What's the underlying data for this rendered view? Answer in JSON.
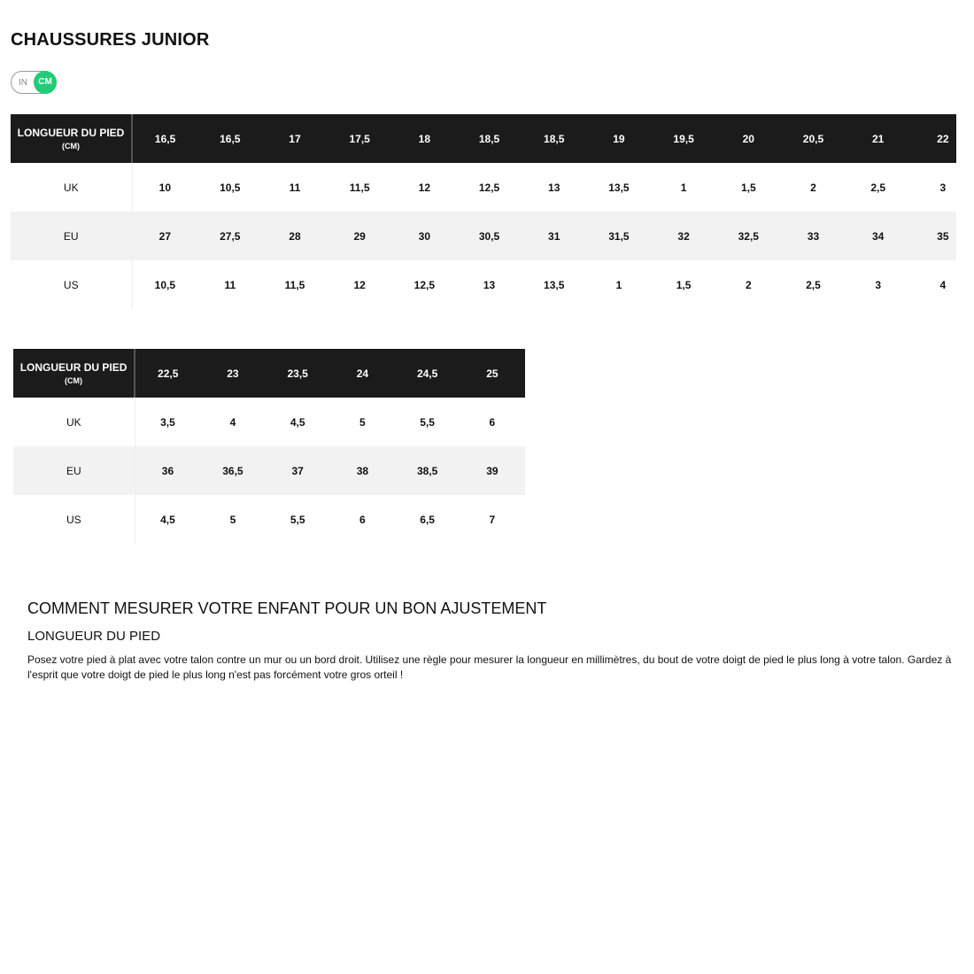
{
  "title": "CHAUSSURES JUNIOR",
  "unit_toggle": {
    "options": [
      "IN",
      "CM"
    ],
    "selected": "CM",
    "accent": "#22cc77"
  },
  "header_label": "LONGUEUR DU PIED",
  "header_unit": "(CM)",
  "tables": [
    {
      "cm": [
        "16,5",
        "16,5",
        "17",
        "17,5",
        "18",
        "18,5",
        "18,5",
        "19",
        "19,5",
        "20",
        "20,5",
        "21",
        "22"
      ],
      "rows": [
        {
          "label": "UK",
          "values": [
            "10",
            "10,5",
            "11",
            "11,5",
            "12",
            "12,5",
            "13",
            "13,5",
            "1",
            "1,5",
            "2",
            "2,5",
            "3"
          ]
        },
        {
          "label": "EU",
          "values": [
            "27",
            "27,5",
            "28",
            "29",
            "30",
            "30,5",
            "31",
            "31,5",
            "32",
            "32,5",
            "33",
            "34",
            "35"
          ]
        },
        {
          "label": "US",
          "values": [
            "10,5",
            "11",
            "11,5",
            "12",
            "12,5",
            "13",
            "13,5",
            "1",
            "1,5",
            "2",
            "2,5",
            "3",
            "4"
          ]
        }
      ]
    },
    {
      "cm": [
        "22,5",
        "23",
        "23,5",
        "24",
        "24,5",
        "25"
      ],
      "rows": [
        {
          "label": "UK",
          "values": [
            "3,5",
            "4",
            "4,5",
            "5",
            "5,5",
            "6"
          ]
        },
        {
          "label": "EU",
          "values": [
            "36",
            "36,5",
            "37",
            "38",
            "38,5",
            "39"
          ]
        },
        {
          "label": "US",
          "values": [
            "4,5",
            "5",
            "5,5",
            "6",
            "6,5",
            "7"
          ]
        }
      ]
    }
  ],
  "guide": {
    "heading": "COMMENT MESURER VOTRE ENFANT POUR UN BON AJUSTEMENT",
    "subheading": "LONGUEUR DU PIED",
    "text": "Posez votre pied à plat avec votre talon contre un mur ou un bord droit. Utilisez une règle pour mesurer la longueur en millimètres, du bout de votre doigt de pied le plus long à votre talon. Gardez à l'esprit que votre doigt de pied le plus long n'est pas forcément votre gros orteil !"
  }
}
